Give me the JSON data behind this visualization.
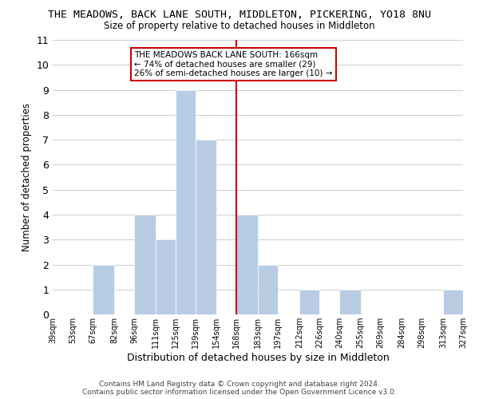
{
  "title": "THE MEADOWS, BACK LANE SOUTH, MIDDLETON, PICKERING, YO18 8NU",
  "subtitle": "Size of property relative to detached houses in Middleton",
  "xlabel": "Distribution of detached houses by size in Middleton",
  "ylabel": "Number of detached properties",
  "bin_edges": [
    39,
    53,
    67,
    82,
    96,
    111,
    125,
    139,
    154,
    168,
    183,
    197,
    212,
    226,
    240,
    255,
    269,
    284,
    298,
    313,
    327
  ],
  "counts": [
    0,
    0,
    2,
    0,
    4,
    3,
    9,
    7,
    0,
    4,
    2,
    0,
    1,
    0,
    1,
    0,
    0,
    0,
    0,
    1
  ],
  "bar_color": "#b8cce4",
  "bar_edge_color": "#ffffff",
  "reference_line_x": 168,
  "reference_line_color": "#cc0000",
  "annotation_text": "THE MEADOWS BACK LANE SOUTH: 166sqm\n← 74% of detached houses are smaller (29)\n26% of semi-detached houses are larger (10) →",
  "annotation_box_color": "#ffffff",
  "annotation_box_edge_color": "#cc0000",
  "ylim": [
    0,
    11
  ],
  "yticks": [
    0,
    1,
    2,
    3,
    4,
    5,
    6,
    7,
    8,
    9,
    10,
    11
  ],
  "tick_labels": [
    "39sqm",
    "53sqm",
    "67sqm",
    "82sqm",
    "96sqm",
    "111sqm",
    "125sqm",
    "139sqm",
    "154sqm",
    "168sqm",
    "183sqm",
    "197sqm",
    "212sqm",
    "226sqm",
    "240sqm",
    "255sqm",
    "269sqm",
    "284sqm",
    "298sqm",
    "313sqm",
    "327sqm"
  ],
  "footer_line1": "Contains HM Land Registry data © Crown copyright and database right 2024.",
  "footer_line2": "Contains public sector information licensed under the Open Government Licence v3.0.",
  "background_color": "#ffffff",
  "grid_color": "#cccccc"
}
